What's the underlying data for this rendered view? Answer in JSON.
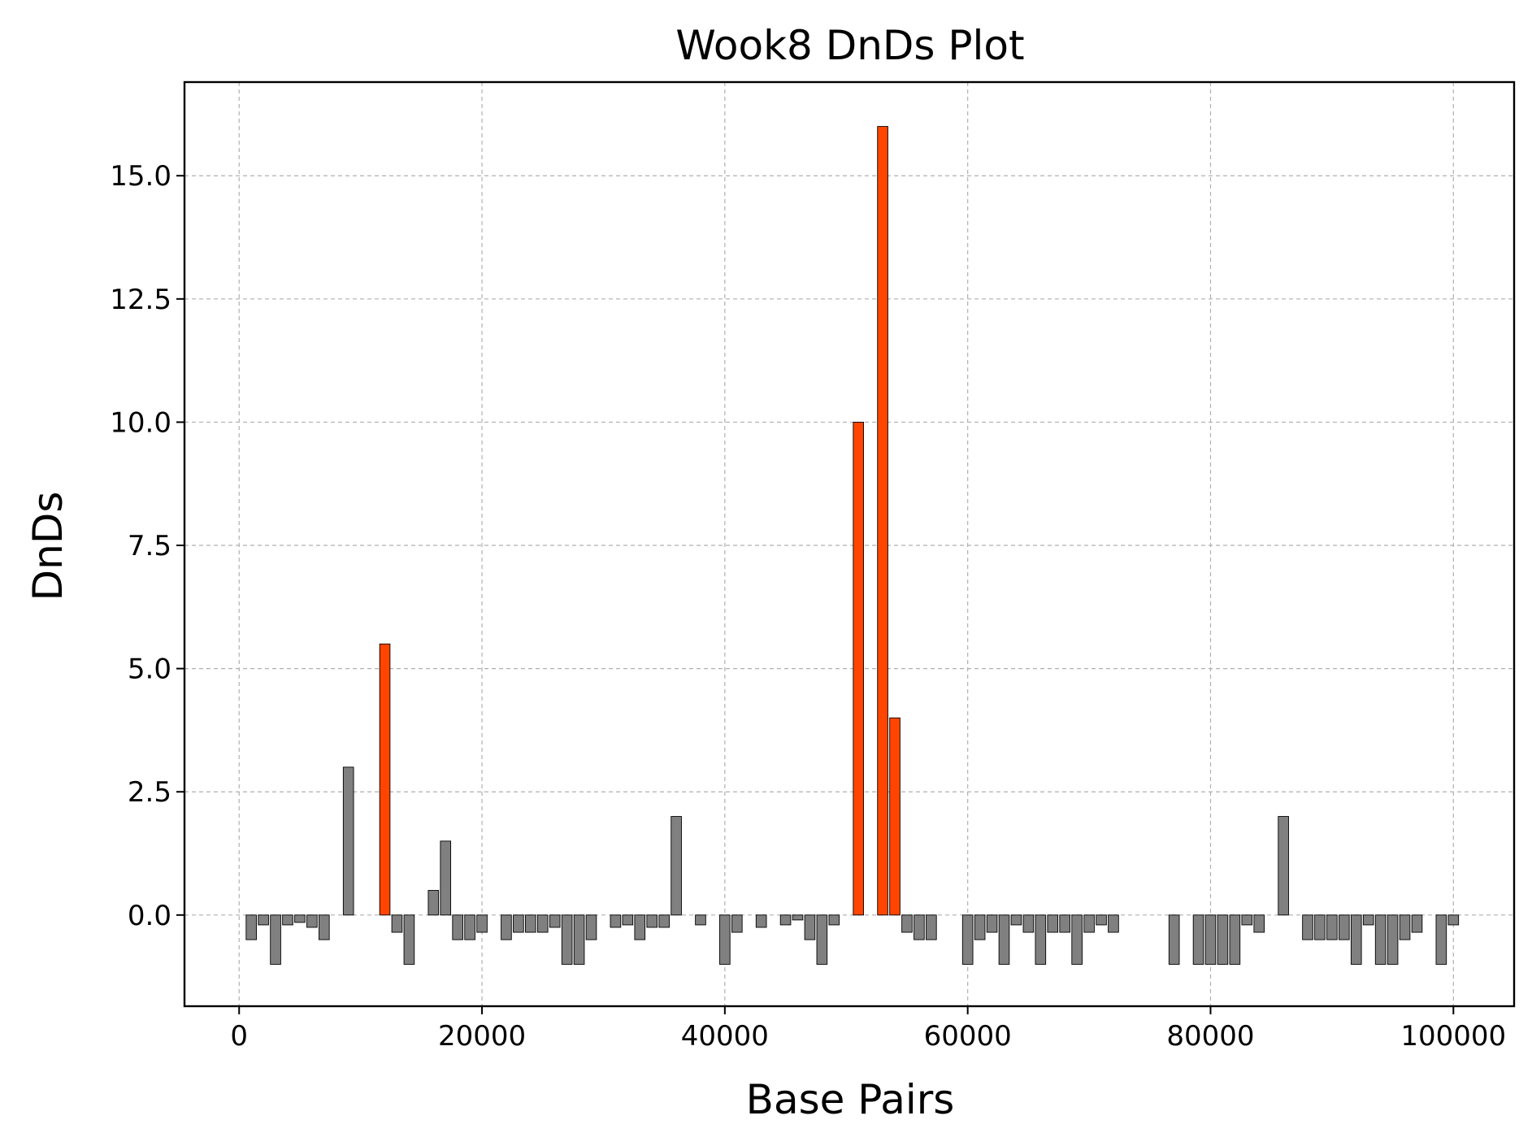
{
  "chart_data": {
    "type": "bar",
    "title": "Wook8 DnDs Plot",
    "xlabel": "Base Pairs",
    "ylabel": "DnDs",
    "xlim": [
      -4500,
      105000
    ],
    "ylim": [
      -1.85,
      16.9
    ],
    "xticks": [
      0,
      20000,
      40000,
      60000,
      80000,
      100000
    ],
    "xtick_labels": [
      "0",
      "20000",
      "40000",
      "60000",
      "80000",
      "100000"
    ],
    "yticks": [
      0.0,
      2.5,
      5.0,
      7.5,
      10.0,
      12.5,
      15.0
    ],
    "ytick_labels": [
      "0.0",
      "2.5",
      "5.0",
      "7.5",
      "10.0",
      "12.5",
      "15.0"
    ],
    "grid": true,
    "bar_width_units": 850,
    "colors": {
      "normal": "#808080",
      "high": "#ff4500"
    },
    "highlight_threshold": 3.5,
    "series": [
      {
        "x": [
          1000,
          2000,
          3000,
          4000,
          5000,
          6000,
          7000,
          9000,
          12000,
          13000,
          14000,
          16000,
          17000,
          18000,
          19000,
          20000,
          22000,
          23000,
          24000,
          25000,
          26000,
          27000,
          28000,
          29000,
          31000,
          32000,
          33000,
          34000,
          35000,
          36000,
          38000,
          40000,
          41000,
          43000,
          45000,
          46000,
          47000,
          48000,
          49000,
          51000,
          53000,
          54000,
          55000,
          56000,
          57000,
          60000,
          61000,
          62000,
          63000,
          64000,
          65000,
          66000,
          67000,
          68000,
          69000,
          70000,
          71000,
          72000,
          77000,
          79000,
          80000,
          81000,
          82000,
          83000,
          84000,
          86000,
          88000,
          89000,
          90000,
          91000,
          92000,
          93000,
          94000,
          95000,
          96000,
          97000,
          99000,
          100000
        ],
        "values": [
          -0.5,
          -0.2,
          -1,
          -0.2,
          -0.15,
          -0.25,
          -0.5,
          3,
          5.5,
          -0.35,
          -1,
          0.5,
          1.5,
          -0.5,
          -0.5,
          -0.35,
          -0.5,
          -0.35,
          -0.35,
          -0.35,
          -0.25,
          -1,
          -1,
          -0.5,
          -0.25,
          -0.2,
          -0.5,
          -0.25,
          -0.25,
          2,
          -0.2,
          -1,
          -0.35,
          -0.25,
          -0.2,
          -0.1,
          -0.5,
          -1,
          -0.2,
          10,
          16,
          4,
          -0.35,
          -0.5,
          -0.5,
          -1,
          -0.5,
          -0.35,
          -1,
          -0.2,
          -0.35,
          -1,
          -0.35,
          -0.35,
          -1,
          -0.35,
          -0.2,
          -0.35,
          -1,
          -1,
          -1,
          -1,
          -1,
          -0.2,
          -0.35,
          2,
          -0.5,
          -0.5,
          -0.5,
          -0.5,
          -1,
          -0.2,
          -1,
          -1,
          -0.5,
          -0.35,
          -1,
          -0.2
        ]
      }
    ]
  }
}
